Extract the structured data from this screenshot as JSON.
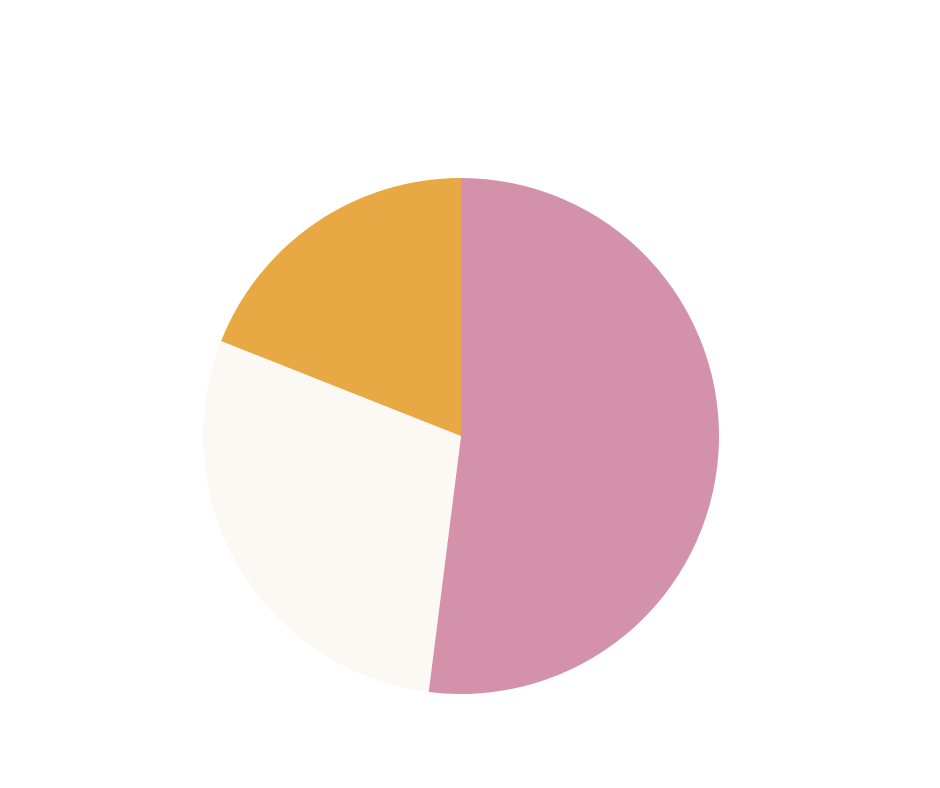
{
  "chart_data": {
    "type": "pie",
    "values": [
      52,
      29,
      19
    ],
    "colors": [
      "#d391aa",
      "#fcf9f4",
      "#e8a945"
    ],
    "start_angle": 0,
    "direction": "clockwise"
  }
}
